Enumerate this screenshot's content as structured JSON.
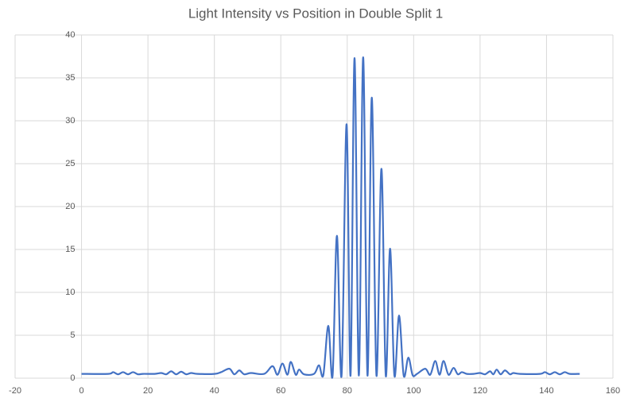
{
  "chart_data": {
    "type": "line",
    "title": "Light Intensity vs Position in Double Split 1",
    "x": [
      0,
      8,
      9.5,
      11,
      12.5,
      14,
      15.5,
      17,
      18.5,
      22,
      24,
      25.5,
      27,
      28.5,
      30,
      31.5,
      33,
      35,
      40,
      42,
      44.5,
      46,
      47.5,
      49,
      51,
      55,
      57.5,
      59,
      60.5,
      62,
      63,
      64.5,
      65.5,
      67,
      70,
      71.5,
      72.8,
      74.3,
      75.6,
      76.9,
      78.3,
      79.8,
      81,
      82.2,
      83.5,
      84.8,
      86.1,
      87.4,
      88.8,
      90.3,
      91.6,
      92.9,
      94.2,
      95.6,
      97,
      98.4,
      99.7,
      101,
      103.5,
      105,
      106.5,
      107.8,
      109,
      110.5,
      112,
      113.3,
      114.5,
      116,
      118,
      120,
      121.5,
      123,
      124,
      125,
      126.2,
      127.5,
      129,
      130,
      132,
      138,
      139.5,
      141,
      142.5,
      144,
      145.5,
      147,
      150
    ],
    "series": [
      {
        "color": "#4472c4",
        "values": [
          0.5,
          0.5,
          0.7,
          0.45,
          0.7,
          0.45,
          0.7,
          0.45,
          0.5,
          0.5,
          0.6,
          0.45,
          0.8,
          0.45,
          0.75,
          0.45,
          0.6,
          0.5,
          0.5,
          0.7,
          1.1,
          0.45,
          0.9,
          0.45,
          0.6,
          0.5,
          1.4,
          0.4,
          1.7,
          0.4,
          1.9,
          0.4,
          1.0,
          0.45,
          0.5,
          1.5,
          0.35,
          6.1,
          0.3,
          16.6,
          0.3,
          29.6,
          0.3,
          37.3,
          0.3,
          37.4,
          0.3,
          32.7,
          0.3,
          24.4,
          0.3,
          15.1,
          0.3,
          7.3,
          0.3,
          2.4,
          0.35,
          0.5,
          1.1,
          0.4,
          2.0,
          0.4,
          2.0,
          0.4,
          1.2,
          0.45,
          0.7,
          0.5,
          0.5,
          0.6,
          0.45,
          0.8,
          0.45,
          1.0,
          0.45,
          0.9,
          0.45,
          0.6,
          0.5,
          0.5,
          0.7,
          0.45,
          0.7,
          0.45,
          0.7,
          0.5,
          0.5
        ]
      }
    ],
    "xlim": [
      -20,
      160
    ],
    "xticks": [
      -20,
      0,
      20,
      40,
      60,
      80,
      100,
      120,
      140,
      160
    ],
    "ylim": [
      0,
      40
    ],
    "yticks": [
      0,
      5,
      10,
      15,
      20,
      25,
      30,
      35,
      40
    ],
    "grid": true
  }
}
